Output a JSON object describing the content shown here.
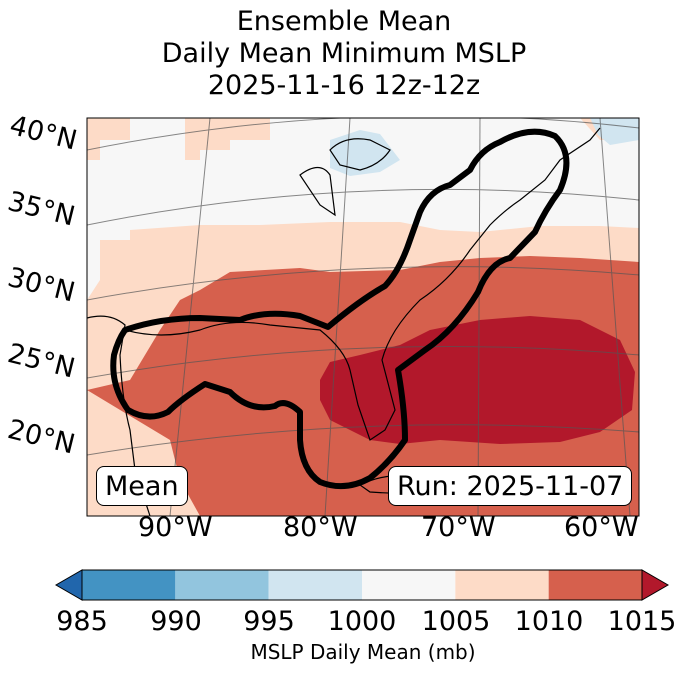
{
  "title": {
    "line1": "Ensemble Mean",
    "line2": "Daily Mean Minimum MSLP",
    "line3": "2025-11-16 12z-12z"
  },
  "map": {
    "lat_labels": [
      "40°N",
      "35°N",
      "30°N",
      "25°N",
      "20°N"
    ],
    "lon_labels": [
      "90°W",
      "80°W",
      "70°W",
      "60°W"
    ],
    "mean_label": "Mean",
    "run_label": "Run: 2025-11-07"
  },
  "colorbar": {
    "ticks": [
      "985",
      "990",
      "995",
      "1000",
      "1005",
      "1010",
      "1015"
    ],
    "label": "MSLP Daily Mean (mb)",
    "colors": [
      "#2166ac",
      "#4393c3",
      "#92c5de",
      "#d1e5f0",
      "#f7f7f7",
      "#fddbc7",
      "#d6604d",
      "#b2182b"
    ]
  }
}
